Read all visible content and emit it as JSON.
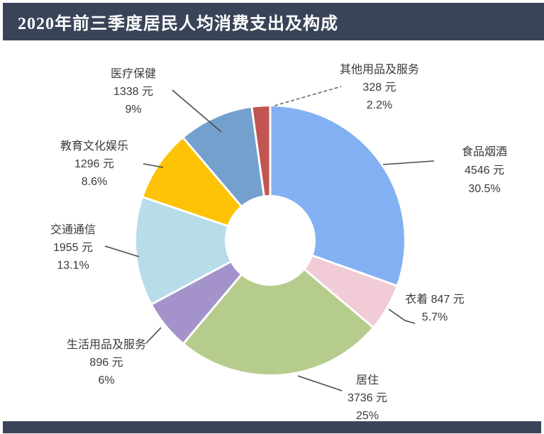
{
  "header": {
    "title": "2020年前三季度居民人均消费支出及构成",
    "bg_color": "#3a4459",
    "text_color": "#ffffff"
  },
  "chart_data": {
    "type": "pie",
    "subtype": "donut",
    "title": "2020年前三季度居民人均消费支出及构成",
    "unit": "元",
    "start_angle_deg": 0,
    "direction": "clockwise",
    "donut_hole_ratio": 0.34,
    "legend_position": "outside-callouts",
    "slices": [
      {
        "key": "food",
        "label": "食品烟酒",
        "value": 4546,
        "pct": 30.5,
        "color": "#82b0f2",
        "display": [
          "食品烟酒",
          "4546 元",
          "30.5%"
        ]
      },
      {
        "key": "clothing",
        "label": "衣着",
        "value": 847,
        "pct": 5.7,
        "color": "#f1ccd6",
        "display": [
          "衣着 847 元",
          "5.7%"
        ]
      },
      {
        "key": "housing",
        "label": "居住",
        "value": 3736,
        "pct": 25,
        "color": "#b6cc8d",
        "display": [
          "居住",
          "3736 元",
          "25%"
        ]
      },
      {
        "key": "household-goods",
        "label": "生活用品及服务",
        "value": 896,
        "pct": 6,
        "color": "#a493cb",
        "display": [
          "生活用品及服务",
          "896 元",
          "6%"
        ]
      },
      {
        "key": "transport",
        "label": "交通通信",
        "value": 1955,
        "pct": 13.1,
        "color": "#b7dcea",
        "display": [
          "交通通信",
          "1955 元",
          "13.1%"
        ]
      },
      {
        "key": "education",
        "label": "教育文化娱乐",
        "value": 1296,
        "pct": 8.6,
        "color": "#fec306",
        "display": [
          "教育文化娱乐",
          "1296 元",
          "8.6%"
        ]
      },
      {
        "key": "medical",
        "label": "医疗保健",
        "value": 1338,
        "pct": 9,
        "color": "#74a0cd",
        "display": [
          "医疗保健",
          "1338 元",
          "9%"
        ]
      },
      {
        "key": "other",
        "label": "其他用品及服务",
        "value": 328,
        "pct": 2.2,
        "color": "#c25551",
        "display": [
          "其他用品及服务",
          "328 元",
          "2.2%"
        ]
      }
    ]
  }
}
